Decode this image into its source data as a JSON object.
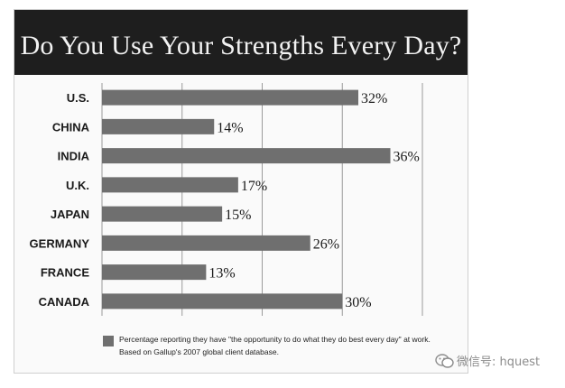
{
  "chart_data": {
    "type": "bar",
    "orientation": "horizontal",
    "title": "Do You Use Your Strengths Every Day?",
    "categories": [
      "U.S.",
      "CHINA",
      "INDIA",
      "U.K.",
      "JAPAN",
      "GERMANY",
      "FRANCE",
      "CANADA"
    ],
    "values": [
      32,
      14,
      36,
      17,
      15,
      26,
      13,
      30
    ],
    "value_labels": [
      "32%",
      "14%",
      "36%",
      "17%",
      "15%",
      "26%",
      "13%",
      "30%"
    ],
    "xlim": [
      0,
      40
    ],
    "grid": true,
    "legend": {
      "label": "Percentage reporting they have \"the opportunity to do what they do best every day\" at work. Based on Gallup's 2007 global client database.",
      "placement": "bottom"
    },
    "colors": {
      "bar": "#6f6f6f",
      "title_background": "#1e1e1e",
      "grid": "#9a9a9a"
    }
  },
  "watermark": {
    "text": "微信号: hquest",
    "icon": "wechat-icon"
  }
}
